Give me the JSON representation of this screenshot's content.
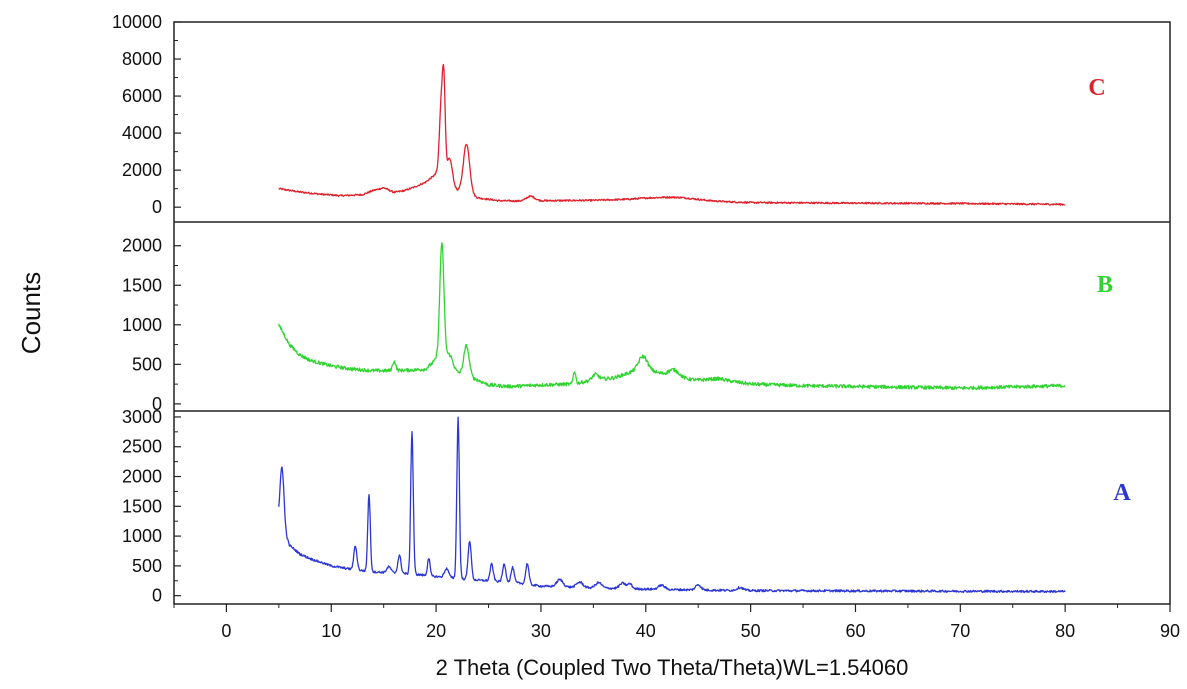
{
  "chart_data": {
    "type": "line",
    "xlabel": "2 Theta (Coupled Two Theta/Theta)WL=1.54060",
    "ylabel": "Counts",
    "xlim": [
      -5,
      90
    ],
    "x_ticks": [
      0,
      10,
      20,
      30,
      40,
      50,
      60,
      70,
      80,
      90
    ],
    "grid": false,
    "panels": [
      {
        "label": "C",
        "color": "#e0202a",
        "ylim": [
          -800,
          10000
        ],
        "y_ticks": [
          0,
          2000,
          4000,
          6000,
          8000,
          10000
        ],
        "baseline": [
          [
            5,
            1000
          ],
          [
            7,
            820
          ],
          [
            9,
            700
          ],
          [
            11,
            620
          ],
          [
            13,
            680
          ],
          [
            14,
            900
          ],
          [
            15,
            1050
          ],
          [
            16,
            800
          ],
          [
            17,
            900
          ],
          [
            18,
            1100
          ],
          [
            19,
            1350
          ],
          [
            20,
            1800
          ],
          [
            21,
            1500
          ],
          [
            22,
            900
          ],
          [
            23,
            700
          ],
          [
            24,
            500
          ],
          [
            26,
            350
          ],
          [
            28,
            330
          ],
          [
            30,
            350
          ],
          [
            35,
            370
          ],
          [
            40,
            450
          ],
          [
            45,
            330
          ],
          [
            50,
            250
          ],
          [
            60,
            220
          ],
          [
            70,
            200
          ],
          [
            80,
            150
          ]
        ],
        "peaks": [
          [
            20.5,
            4000,
            0.18
          ],
          [
            20.75,
            4200,
            0.13
          ],
          [
            21.3,
            1300,
            0.25
          ],
          [
            22.9,
            2700,
            0.3
          ],
          [
            29,
            250,
            0.4
          ],
          [
            43,
            150,
            2
          ]
        ],
        "noise": 45
      },
      {
        "label": "B",
        "color": "#2fd42f",
        "ylim": [
          -90,
          2300
        ],
        "y_ticks": [
          0,
          500,
          1000,
          1500,
          2000
        ],
        "baseline": [
          [
            5,
            1000
          ],
          [
            6,
            750
          ],
          [
            7,
            620
          ],
          [
            8,
            550
          ],
          [
            10,
            480
          ],
          [
            12,
            440
          ],
          [
            14,
            420
          ],
          [
            16,
            420
          ],
          [
            18,
            430
          ],
          [
            19,
            440
          ],
          [
            20,
            560
          ],
          [
            21,
            500
          ],
          [
            22,
            400
          ],
          [
            23,
            350
          ],
          [
            24,
            300
          ],
          [
            25,
            240
          ],
          [
            27,
            220
          ],
          [
            30,
            240
          ],
          [
            33,
            250
          ],
          [
            35,
            300
          ],
          [
            37,
            330
          ],
          [
            39,
            420
          ],
          [
            40,
            450
          ],
          [
            41,
            400
          ],
          [
            43,
            330
          ],
          [
            45,
            300
          ],
          [
            47,
            320
          ],
          [
            48,
            290
          ],
          [
            50,
            250
          ],
          [
            55,
            230
          ],
          [
            60,
            220
          ],
          [
            65,
            210
          ],
          [
            70,
            200
          ],
          [
            80,
            230
          ]
        ],
        "peaks": [
          [
            20.55,
            1500,
            0.2
          ],
          [
            21.3,
            150,
            0.3
          ],
          [
            22.9,
            380,
            0.25
          ],
          [
            16,
            120,
            0.15
          ],
          [
            33.2,
            160,
            0.12
          ],
          [
            35.2,
            70,
            0.3
          ],
          [
            39.7,
            160,
            0.4
          ],
          [
            42.7,
            90,
            0.5
          ]
        ],
        "noise": 22
      },
      {
        "label": "A",
        "color": "#2b36d4",
        "ylim": [
          -140,
          3100
        ],
        "y_ticks": [
          0,
          500,
          1000,
          1500,
          2000,
          2500,
          3000
        ],
        "baseline": [
          [
            5,
            1250
          ],
          [
            5.5,
            1100
          ],
          [
            6,
            850
          ],
          [
            7,
            700
          ],
          [
            8,
            620
          ],
          [
            10,
            500
          ],
          [
            12,
            440
          ],
          [
            14,
            400
          ],
          [
            16,
            380
          ],
          [
            18,
            360
          ],
          [
            20,
            320
          ],
          [
            22,
            290
          ],
          [
            24,
            260
          ],
          [
            26,
            240
          ],
          [
            28,
            210
          ],
          [
            30,
            160
          ],
          [
            35,
            130
          ],
          [
            40,
            110
          ],
          [
            45,
            95
          ],
          [
            50,
            85
          ],
          [
            60,
            80
          ],
          [
            70,
            75
          ],
          [
            80,
            70
          ]
        ],
        "peaks": [
          [
            5.3,
            1000,
            0.18
          ],
          [
            12.3,
            400,
            0.15
          ],
          [
            13.6,
            1300,
            0.12
          ],
          [
            15.5,
            100,
            0.2
          ],
          [
            16.5,
            300,
            0.15
          ],
          [
            17.7,
            2400,
            0.12
          ],
          [
            19.3,
            300,
            0.12
          ],
          [
            21,
            150,
            0.2
          ],
          [
            22.1,
            2700,
            0.12
          ],
          [
            23.2,
            650,
            0.15
          ],
          [
            25.3,
            280,
            0.15
          ],
          [
            26.5,
            300,
            0.15
          ],
          [
            27.3,
            250,
            0.15
          ],
          [
            28.7,
            350,
            0.15
          ],
          [
            31.8,
            120,
            0.3
          ],
          [
            33.7,
            90,
            0.3
          ],
          [
            35.5,
            90,
            0.3
          ],
          [
            37.8,
            90,
            0.3
          ],
          [
            38.5,
            80,
            0.2
          ],
          [
            41.5,
            70,
            0.3
          ],
          [
            45,
            90,
            0.25
          ],
          [
            49,
            50,
            0.3
          ]
        ],
        "noise": 18
      }
    ]
  }
}
